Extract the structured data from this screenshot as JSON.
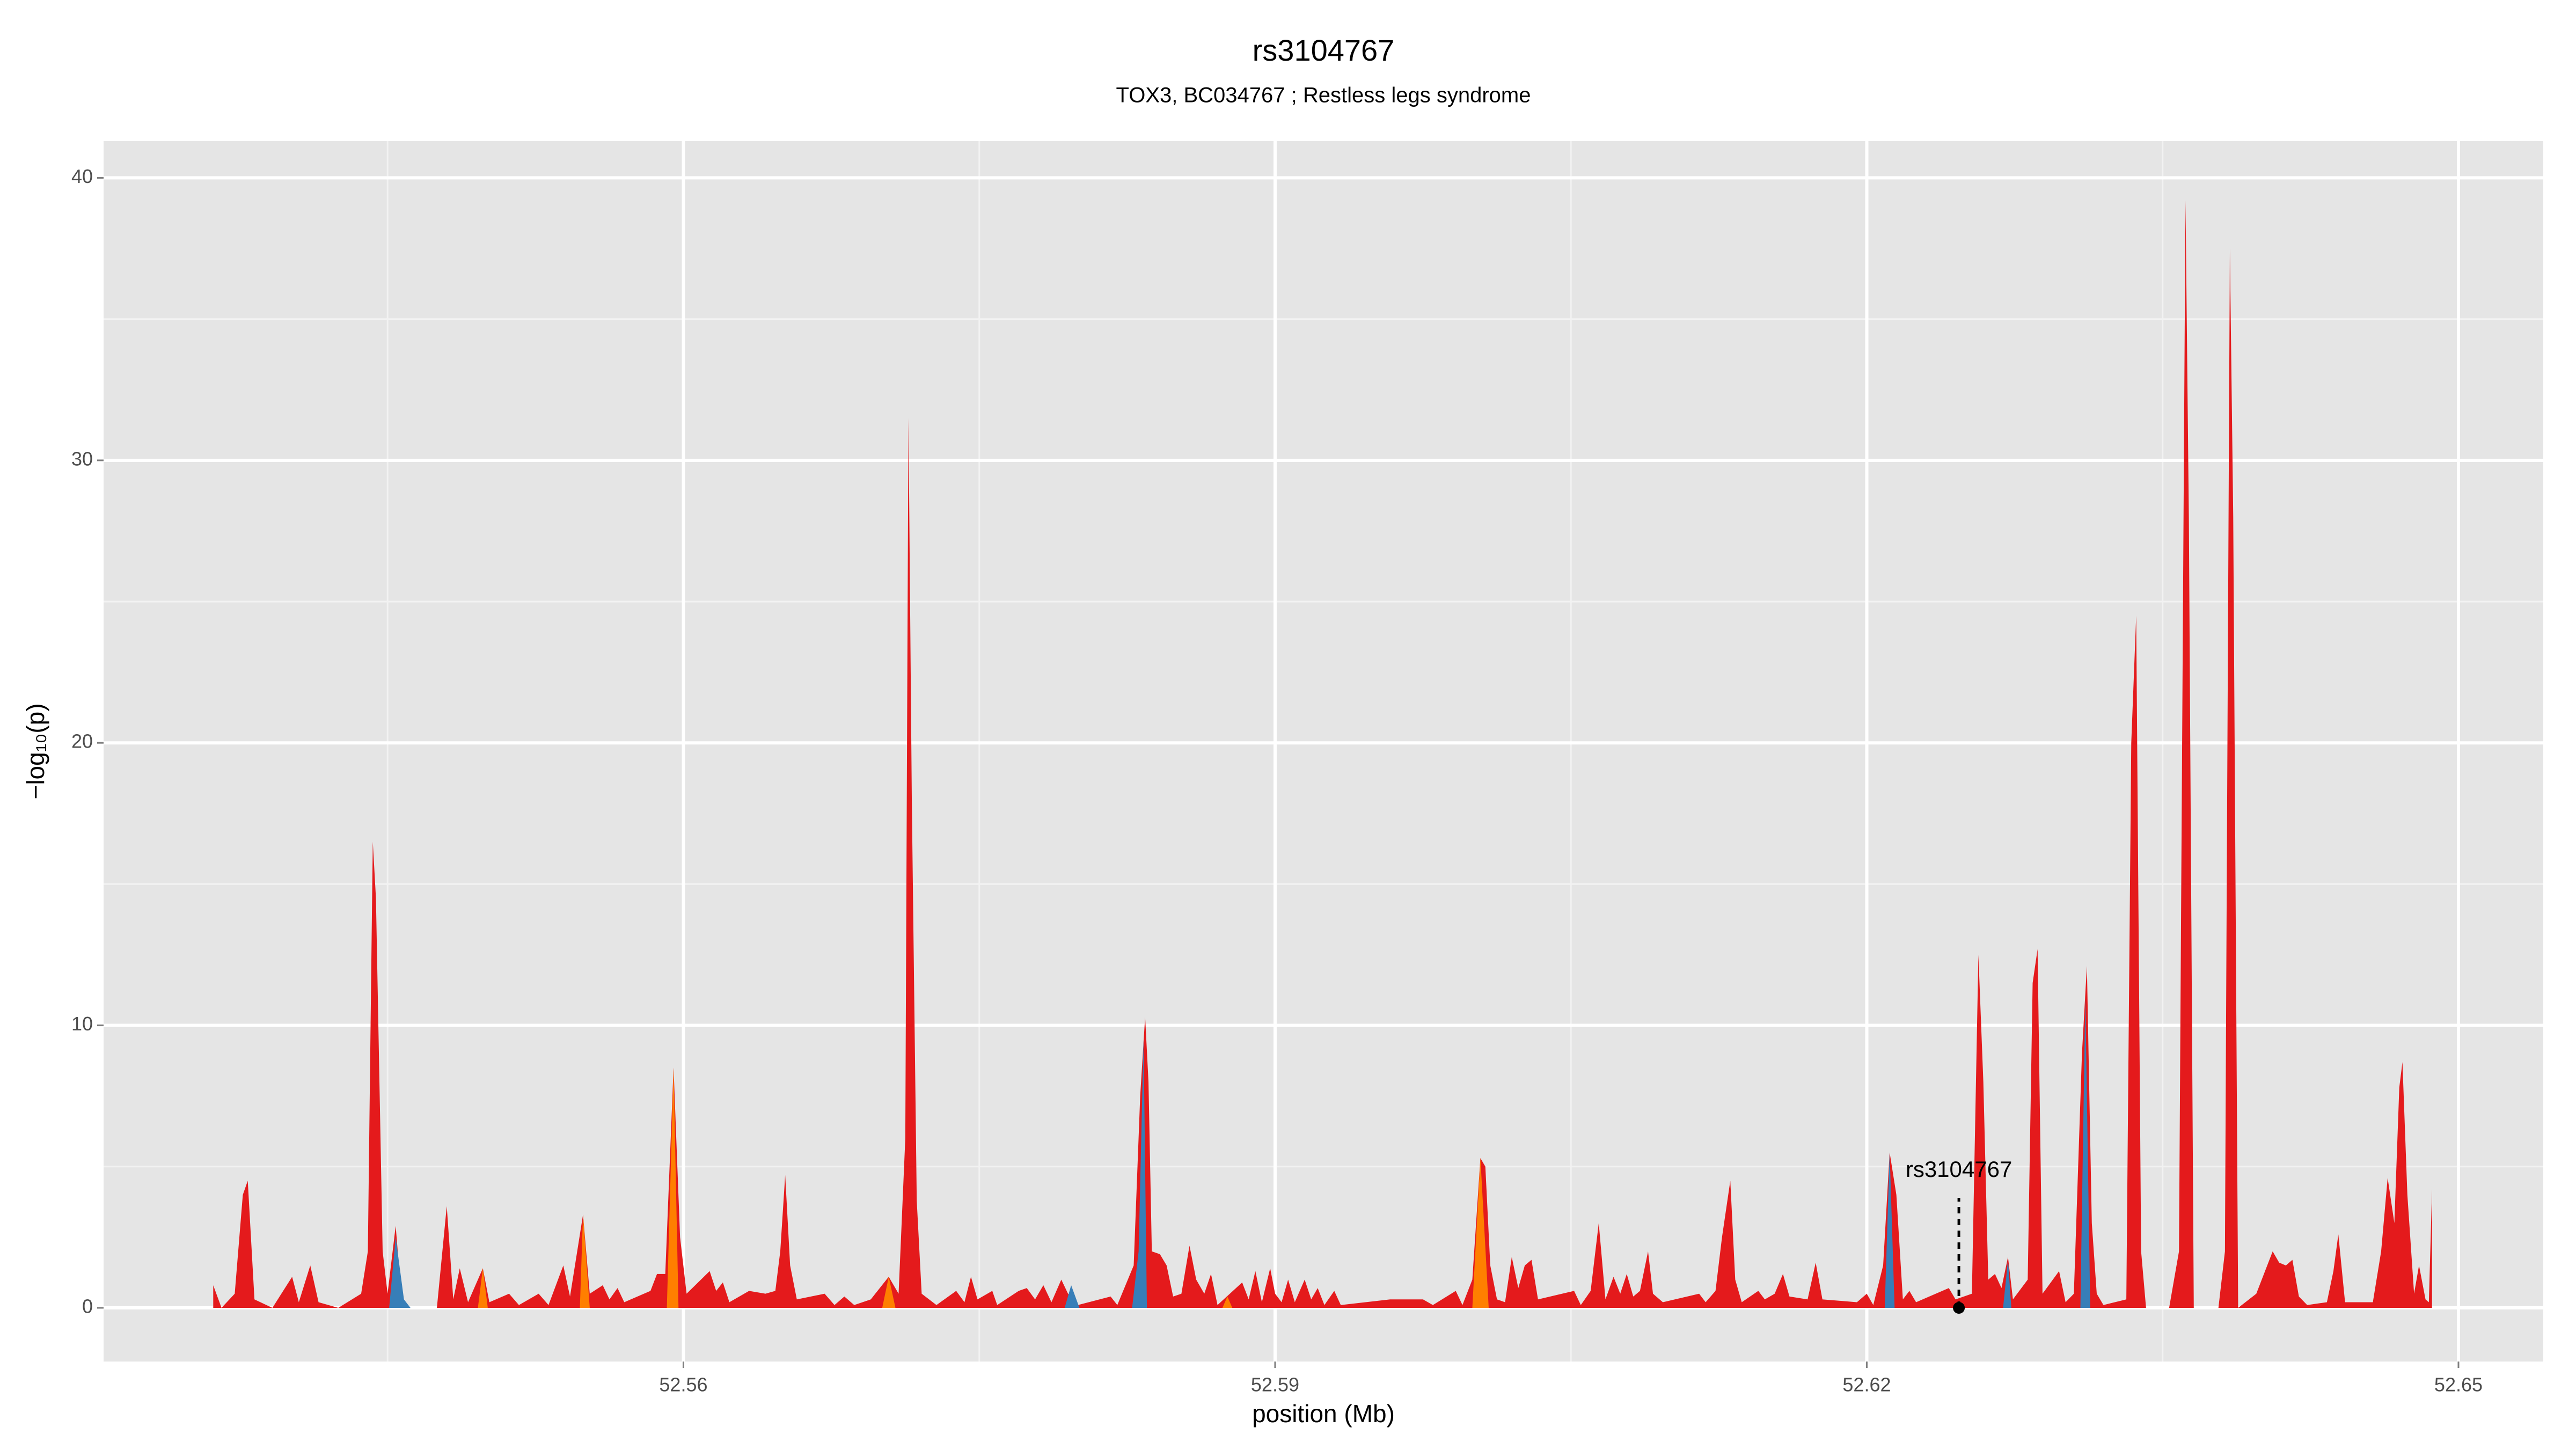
{
  "chart_data": {
    "type": "area",
    "title": "rs3104767",
    "subtitle": "TOX3, BC034767 ; Restless legs syndrome",
    "xlabel": "position (Mb)",
    "ylabel": "−log₁₀(p)",
    "xlim": [
      52.5306,
      52.6543
    ],
    "xticks": [
      52.56,
      52.59,
      52.62,
      52.65
    ],
    "ylim": [
      -1.9,
      41.3
    ],
    "yticks": [
      0,
      10,
      20,
      30,
      40
    ],
    "grid": true,
    "series": [
      {
        "color": "#e41a1c",
        "x": [
          52.53616,
          52.53658,
          52.53725,
          52.53766,
          52.53791,
          52.53825,
          52.53916,
          52.54016,
          52.5405,
          52.54108,
          52.5415,
          52.5425,
          52.54366,
          52.544,
          52.54425,
          52.54441,
          52.54475,
          52.545,
          52.54541,
          52.54575,
          52.5475,
          52.548,
          52.54833,
          52.54866,
          52.54908,
          52.54983,
          52.55016,
          52.55116,
          52.55166,
          52.55266,
          52.55316,
          52.55391,
          52.55425,
          52.55491,
          52.55525,
          52.55591,
          52.55625,
          52.55666,
          52.557,
          52.55833,
          52.55866,
          52.55908,
          52.5595,
          52.55983,
          52.56016,
          52.56133,
          52.56166,
          52.562,
          52.56233,
          52.56333,
          52.56416,
          52.56466,
          52.56491,
          52.56516,
          52.56541,
          52.56575,
          52.56716,
          52.56766,
          52.56816,
          52.56866,
          52.5695,
          52.57041,
          52.57091,
          52.57125,
          52.57141,
          52.57158,
          52.57183,
          52.57208,
          52.57283,
          52.57383,
          52.57425,
          52.57458,
          52.57491,
          52.57566,
          52.57591,
          52.577,
          52.57741,
          52.57783,
          52.57825,
          52.57866,
          52.57916,
          52.5795,
          52.58,
          52.58166,
          52.582,
          52.58283,
          52.58316,
          52.58341,
          52.58358,
          52.58375,
          52.58416,
          52.5845,
          52.58483,
          52.58525,
          52.58566,
          52.586,
          52.58641,
          52.58675,
          52.58708,
          52.58833,
          52.58866,
          52.589,
          52.58933,
          52.58975,
          52.59,
          52.59033,
          52.59066,
          52.591,
          52.5915,
          52.59183,
          52.59216,
          52.5925,
          52.593,
          52.59333,
          52.59583,
          52.5975,
          52.598,
          52.59916,
          52.5995,
          52.6,
          52.60041,
          52.60066,
          52.60091,
          52.60125,
          52.60166,
          52.602,
          52.60233,
          52.60266,
          52.603,
          52.60333,
          52.60516,
          52.6055,
          52.606,
          52.60641,
          52.60675,
          52.60716,
          52.6075,
          52.60783,
          52.60816,
          52.6085,
          52.60891,
          52.60916,
          52.60966,
          52.6115,
          52.61183,
          52.61233,
          52.61266,
          52.61308,
          52.61333,
          52.61366,
          52.6145,
          52.61483,
          52.61533,
          52.61575,
          52.61608,
          52.617,
          52.61741,
          52.61775,
          52.6195,
          52.62,
          52.62033,
          52.62083,
          52.62116,
          52.6215,
          52.62183,
          52.62216,
          52.6225,
          52.62416,
          52.6245,
          52.62533,
          52.62566,
          52.62591,
          52.62616,
          52.6265,
          52.62683,
          52.62716,
          52.62741,
          52.62816,
          52.62841,
          52.62866,
          52.62891,
          52.62975,
          52.63008,
          52.6305,
          52.63091,
          52.63116,
          52.63141,
          52.63166,
          52.632,
          52.63316,
          52.63341,
          52.63366,
          52.63391,
          52.63416,
          52.63533,
          52.63583,
          52.63616,
          52.63633,
          52.63658,
          52.63783,
          52.63816,
          52.63841,
          52.63858,
          52.63883,
          52.63975,
          52.64058,
          52.64091,
          52.64125,
          52.64158,
          52.64191,
          52.64233,
          52.64333,
          52.64366,
          52.64391,
          52.64425,
          52.64566,
          52.64608,
          52.64641,
          52.64675,
          52.647,
          52.64716,
          52.64741,
          52.64775,
          52.648,
          52.64833,
          52.6485,
          52.64866
        ],
        "values": [
          0.8,
          0,
          0.5,
          4.0,
          4.5,
          0.3,
          0,
          1.1,
          0.2,
          1.5,
          0.2,
          0,
          0.5,
          2,
          16.5,
          14.5,
          2,
          0.5,
          2.9,
          0,
          0,
          3.6,
          0.3,
          1.4,
          0.2,
          1.4,
          0.2,
          0.5,
          0.1,
          0.5,
          0.1,
          1.5,
          0.4,
          3.3,
          0.5,
          0.8,
          0.3,
          0.7,
          0.2,
          0.6,
          1.2,
          1.2,
          8.5,
          2.5,
          0.5,
          1.3,
          0.6,
          0.9,
          0.2,
          0.6,
          0.5,
          0.6,
          2,
          4.7,
          1.5,
          0.3,
          0.5,
          0.1,
          0.4,
          0.1,
          0.3,
          1.1,
          0.5,
          6,
          31.5,
          18,
          3.8,
          0.5,
          0.1,
          0.6,
          0.2,
          1.1,
          0.3,
          0.6,
          0.1,
          0.6,
          0.7,
          0.3,
          0.8,
          0.2,
          1.0,
          0.5,
          0.1,
          0.4,
          0.1,
          1.5,
          7.5,
          10.3,
          8,
          2,
          1.9,
          1.5,
          0.4,
          0.5,
          2.2,
          1.0,
          0.5,
          1.2,
          0.1,
          0.9,
          0.3,
          1.3,
          0.2,
          1.4,
          0.5,
          0.2,
          1.0,
          0.2,
          1.0,
          0.3,
          0.7,
          0.1,
          0.6,
          0.1,
          0.3,
          0.3,
          0.1,
          0.6,
          0.1,
          1.0,
          5.3,
          5.0,
          1.5,
          0.3,
          0.2,
          1.8,
          0.7,
          1.5,
          1.7,
          0.3,
          0.6,
          0.1,
          0.6,
          3,
          0.3,
          1.1,
          0.5,
          1.2,
          0.4,
          0.6,
          2.0,
          0.5,
          0.2,
          0.5,
          0.2,
          0.6,
          2.5,
          4.5,
          1,
          0.2,
          0.6,
          0.3,
          0.5,
          1.2,
          0.4,
          0.3,
          1.6,
          0.3,
          0.2,
          0.5,
          0.1,
          1.5,
          5.5,
          4.0,
          0.3,
          0.6,
          0.2,
          0.7,
          0.3,
          0.5,
          12.5,
          8,
          1,
          1.2,
          0.7,
          1.8,
          0.3,
          1.0,
          11.5,
          12.7,
          0.5,
          1.3,
          0.2,
          0.5,
          9,
          12.1,
          3,
          0.5,
          0.1,
          0.3,
          20,
          24.5,
          2,
          0,
          0,
          2,
          39.2,
          28,
          0,
          0,
          2,
          37.5,
          28,
          0,
          0.5,
          2,
          1.6,
          1.5,
          1.7,
          0.4,
          0.1,
          0.2,
          1.3,
          2.6,
          0.2,
          0.2,
          2.0,
          4.6,
          3,
          7.8,
          8.7,
          4,
          0.5,
          1.5,
          0.3,
          0.2,
          4.2
        ]
      },
      {
        "color": "#377eb8",
        "x": [
          52.54508,
          52.54541,
          52.54583,
          52.54616,
          52.56,
          52.57933,
          52.57966,
          52.58008,
          52.581,
          52.58275,
          52.58308,
          52.58333,
          52.5835,
          52.6,
          52.62091,
          52.62116,
          52.62141,
          52.624,
          52.62691,
          52.62716,
          52.62733,
          52.629,
          52.63083,
          52.63108,
          52.63133
        ],
        "values": [
          0,
          2.5,
          0.3,
          0,
          null,
          0,
          0.8,
          0,
          null,
          0,
          2,
          9.5,
          0,
          null,
          0,
          5.5,
          0,
          null,
          0,
          1.7,
          0,
          null,
          0,
          11,
          0
        ]
      },
      {
        "color": "#ff7f00",
        "x": [
          52.54958,
          52.54983,
          52.55008,
          52.552,
          52.55475,
          52.55491,
          52.55525,
          52.557,
          52.55916,
          52.5595,
          52.55975,
          52.565,
          52.57008,
          52.57041,
          52.57075,
          52.58,
          52.58733,
          52.58758,
          52.58783,
          52.595,
          52.6,
          52.60041,
          52.60083
        ],
        "values": [
          0,
          1.4,
          0,
          null,
          0,
          3.3,
          0,
          null,
          0,
          8.5,
          0,
          null,
          0,
          1.1,
          0,
          null,
          0,
          0.4,
          0,
          null,
          0,
          5.3,
          0
        ]
      }
    ],
    "annotation": {
      "text": "rs3104767",
      "x": 52.62467,
      "y": 0
    }
  }
}
